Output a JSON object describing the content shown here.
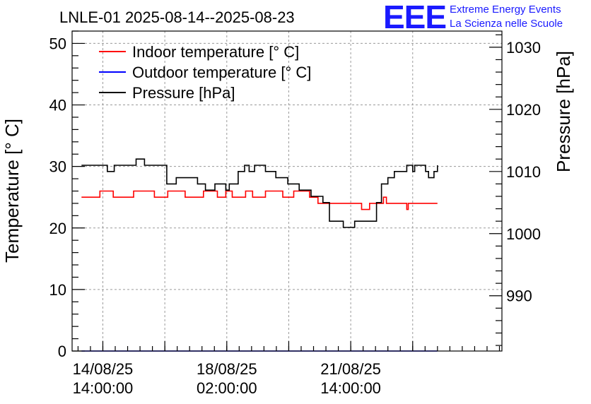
{
  "chart_data": {
    "type": "line",
    "title": "LNLE-01 2025-08-14--2025-08-23",
    "logo": {
      "mark": "EEE",
      "line1": "Extreme Energy Events",
      "line2": "La Scienza nelle Scuole"
    },
    "ylabel": "Temperature [° C]",
    "y2label": "Pressure [hPa]",
    "ylim": [
      0,
      52
    ],
    "y2lim": [
      981.1,
      1032.6
    ],
    "xlim": [
      -0.62,
      8.05
    ],
    "yticks": [
      0,
      10,
      20,
      30,
      40,
      50
    ],
    "y2ticks": [
      990,
      1000,
      1010,
      1020,
      1030
    ],
    "xtick_positions": [
      0,
      2.5,
      5
    ],
    "xtick_labels": [
      {
        "date": "14/08/25",
        "time": "14:00:00"
      },
      {
        "date": "18/08/25",
        "time": "02:00:00"
      },
      {
        "date": "21/08/25",
        "time": "14:00:00"
      }
    ],
    "grid": true,
    "legend_position": "top-left",
    "series": [
      {
        "name": "Indoor temperature [° C]",
        "color": "#ff0000",
        "axis": "left",
        "x": [
          -0.43,
          -0.06,
          -0.06,
          0.21,
          0.21,
          0.62,
          0.62,
          1.04,
          1.04,
          1.31,
          1.31,
          1.66,
          1.66,
          2.03,
          2.03,
          2.31,
          2.31,
          2.48,
          2.48,
          2.61,
          2.61,
          2.88,
          2.88,
          3.02,
          3.02,
          3.28,
          3.28,
          3.63,
          3.63,
          3.85,
          3.85,
          4.17,
          4.17,
          4.34,
          4.34,
          5.22,
          5.22,
          5.38,
          5.38,
          5.66,
          5.66,
          5.72,
          5.72,
          6.13,
          6.13,
          6.16,
          6.16,
          6.75
        ],
        "y": [
          25,
          25,
          26,
          26,
          25,
          25,
          26,
          26,
          25,
          25,
          26,
          26,
          25,
          25,
          26,
          26,
          25,
          25,
          26,
          26,
          25,
          25,
          26,
          26,
          25,
          25,
          26,
          26,
          25,
          25,
          26,
          26,
          25,
          25,
          24,
          24,
          23,
          23,
          24,
          24,
          25,
          25,
          24,
          24,
          23,
          23,
          24,
          24
        ]
      },
      {
        "name": "Outdoor temperature [° C]",
        "color": "#0000ff",
        "axis": "left",
        "x": [
          -0.43,
          6.75
        ],
        "y": [
          0,
          0
        ]
      },
      {
        "name": "Pressure [hPa]",
        "color": "#000000",
        "axis": "right",
        "x": [
          -0.43,
          0.04,
          0.09,
          0.16,
          0.23,
          0.62,
          0.67,
          0.74,
          0.84,
          1.14,
          1.29,
          1.38,
          1.48,
          1.55,
          1.91,
          2.04,
          2.07,
          2.26,
          2.48,
          2.55,
          2.58,
          2.73,
          2.78,
          2.86,
          2.95,
          3.06,
          3.18,
          3.28,
          3.35,
          3.49,
          3.62,
          3.73,
          3.85,
          3.96,
          4.12,
          4.2,
          4.28,
          4.44,
          4.57,
          4.68,
          4.85,
          4.98,
          5.08,
          5.16,
          5.28,
          5.52,
          5.62,
          5.75,
          5.83,
          5.88,
          6.04,
          6.13,
          6.21,
          6.25,
          6.29,
          6.4,
          6.51,
          6.57,
          6.64,
          6.68,
          6.75
        ],
        "y": [
          1011,
          1011,
          1010,
          1010,
          1011,
          1011,
          1012,
          1012,
          1011,
          1011,
          1008,
          1008,
          1009,
          1009,
          1008,
          1008,
          1007,
          1008,
          1007,
          1008,
          1008,
          1010,
          1010,
          1011,
          1010,
          1011,
          1011,
          1010,
          1010,
          1009,
          1009,
          1008,
          1008,
          1007,
          1007,
          1006,
          1006,
          1005,
          1002,
          1002,
          1001,
          1001,
          1002,
          1002,
          1002,
          1005,
          1008,
          1009,
          1009,
          1010,
          1010,
          1011,
          1011,
          1010,
          1011,
          1011,
          1010,
          1009,
          1009,
          1010,
          1011
        ]
      }
    ]
  }
}
